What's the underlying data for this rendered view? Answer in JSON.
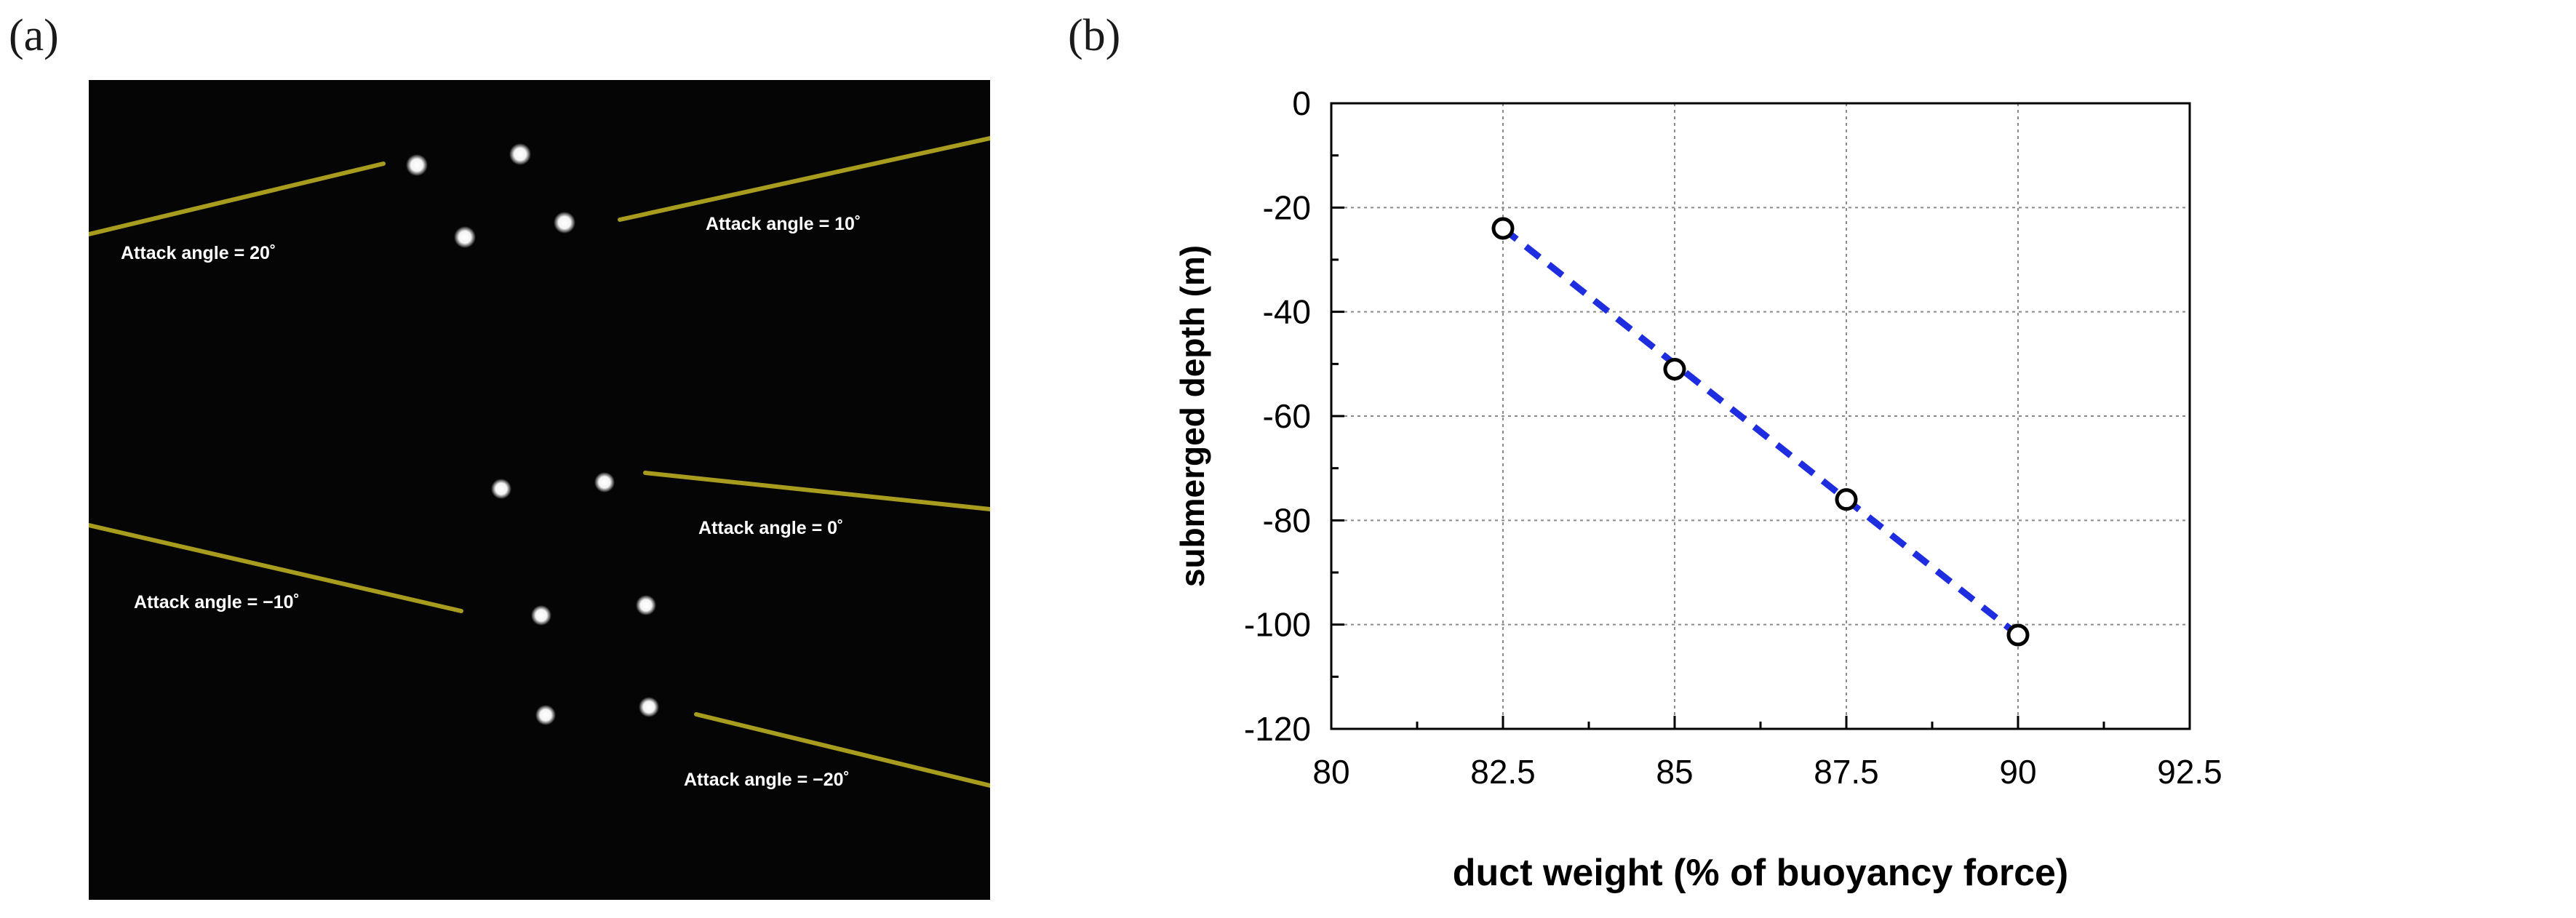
{
  "panels": {
    "a": {
      "label": "(a)",
      "annotations": [
        "Attack angle = 20˚",
        "Attack angle = 10˚",
        "Attack angle = 0˚",
        "Attack angle = −10˚",
        "Attack angle = −20˚"
      ],
      "line_color": "#a89c1e"
    },
    "b": {
      "label": "(b)"
    }
  },
  "chart_data": {
    "type": "scatter",
    "x": [
      82.5,
      85,
      87.5,
      90
    ],
    "y": [
      -24,
      -51,
      -76,
      -102
    ],
    "xlabel": "duct weight (% of buoyancy force)",
    "ylabel": "submerged depth (m)",
    "xlim": [
      80,
      92.5
    ],
    "ylim": [
      -120,
      0
    ],
    "xticks": [
      "80",
      "82.5",
      "85",
      "87.5",
      "90",
      "92.5"
    ],
    "yticks": [
      "0",
      "-20",
      "-40",
      "-60",
      "-80",
      "-100",
      "-120"
    ],
    "grid": true,
    "marker": "open-circle",
    "trendline": {
      "style": "dashed",
      "color": "#1f2de0"
    }
  }
}
